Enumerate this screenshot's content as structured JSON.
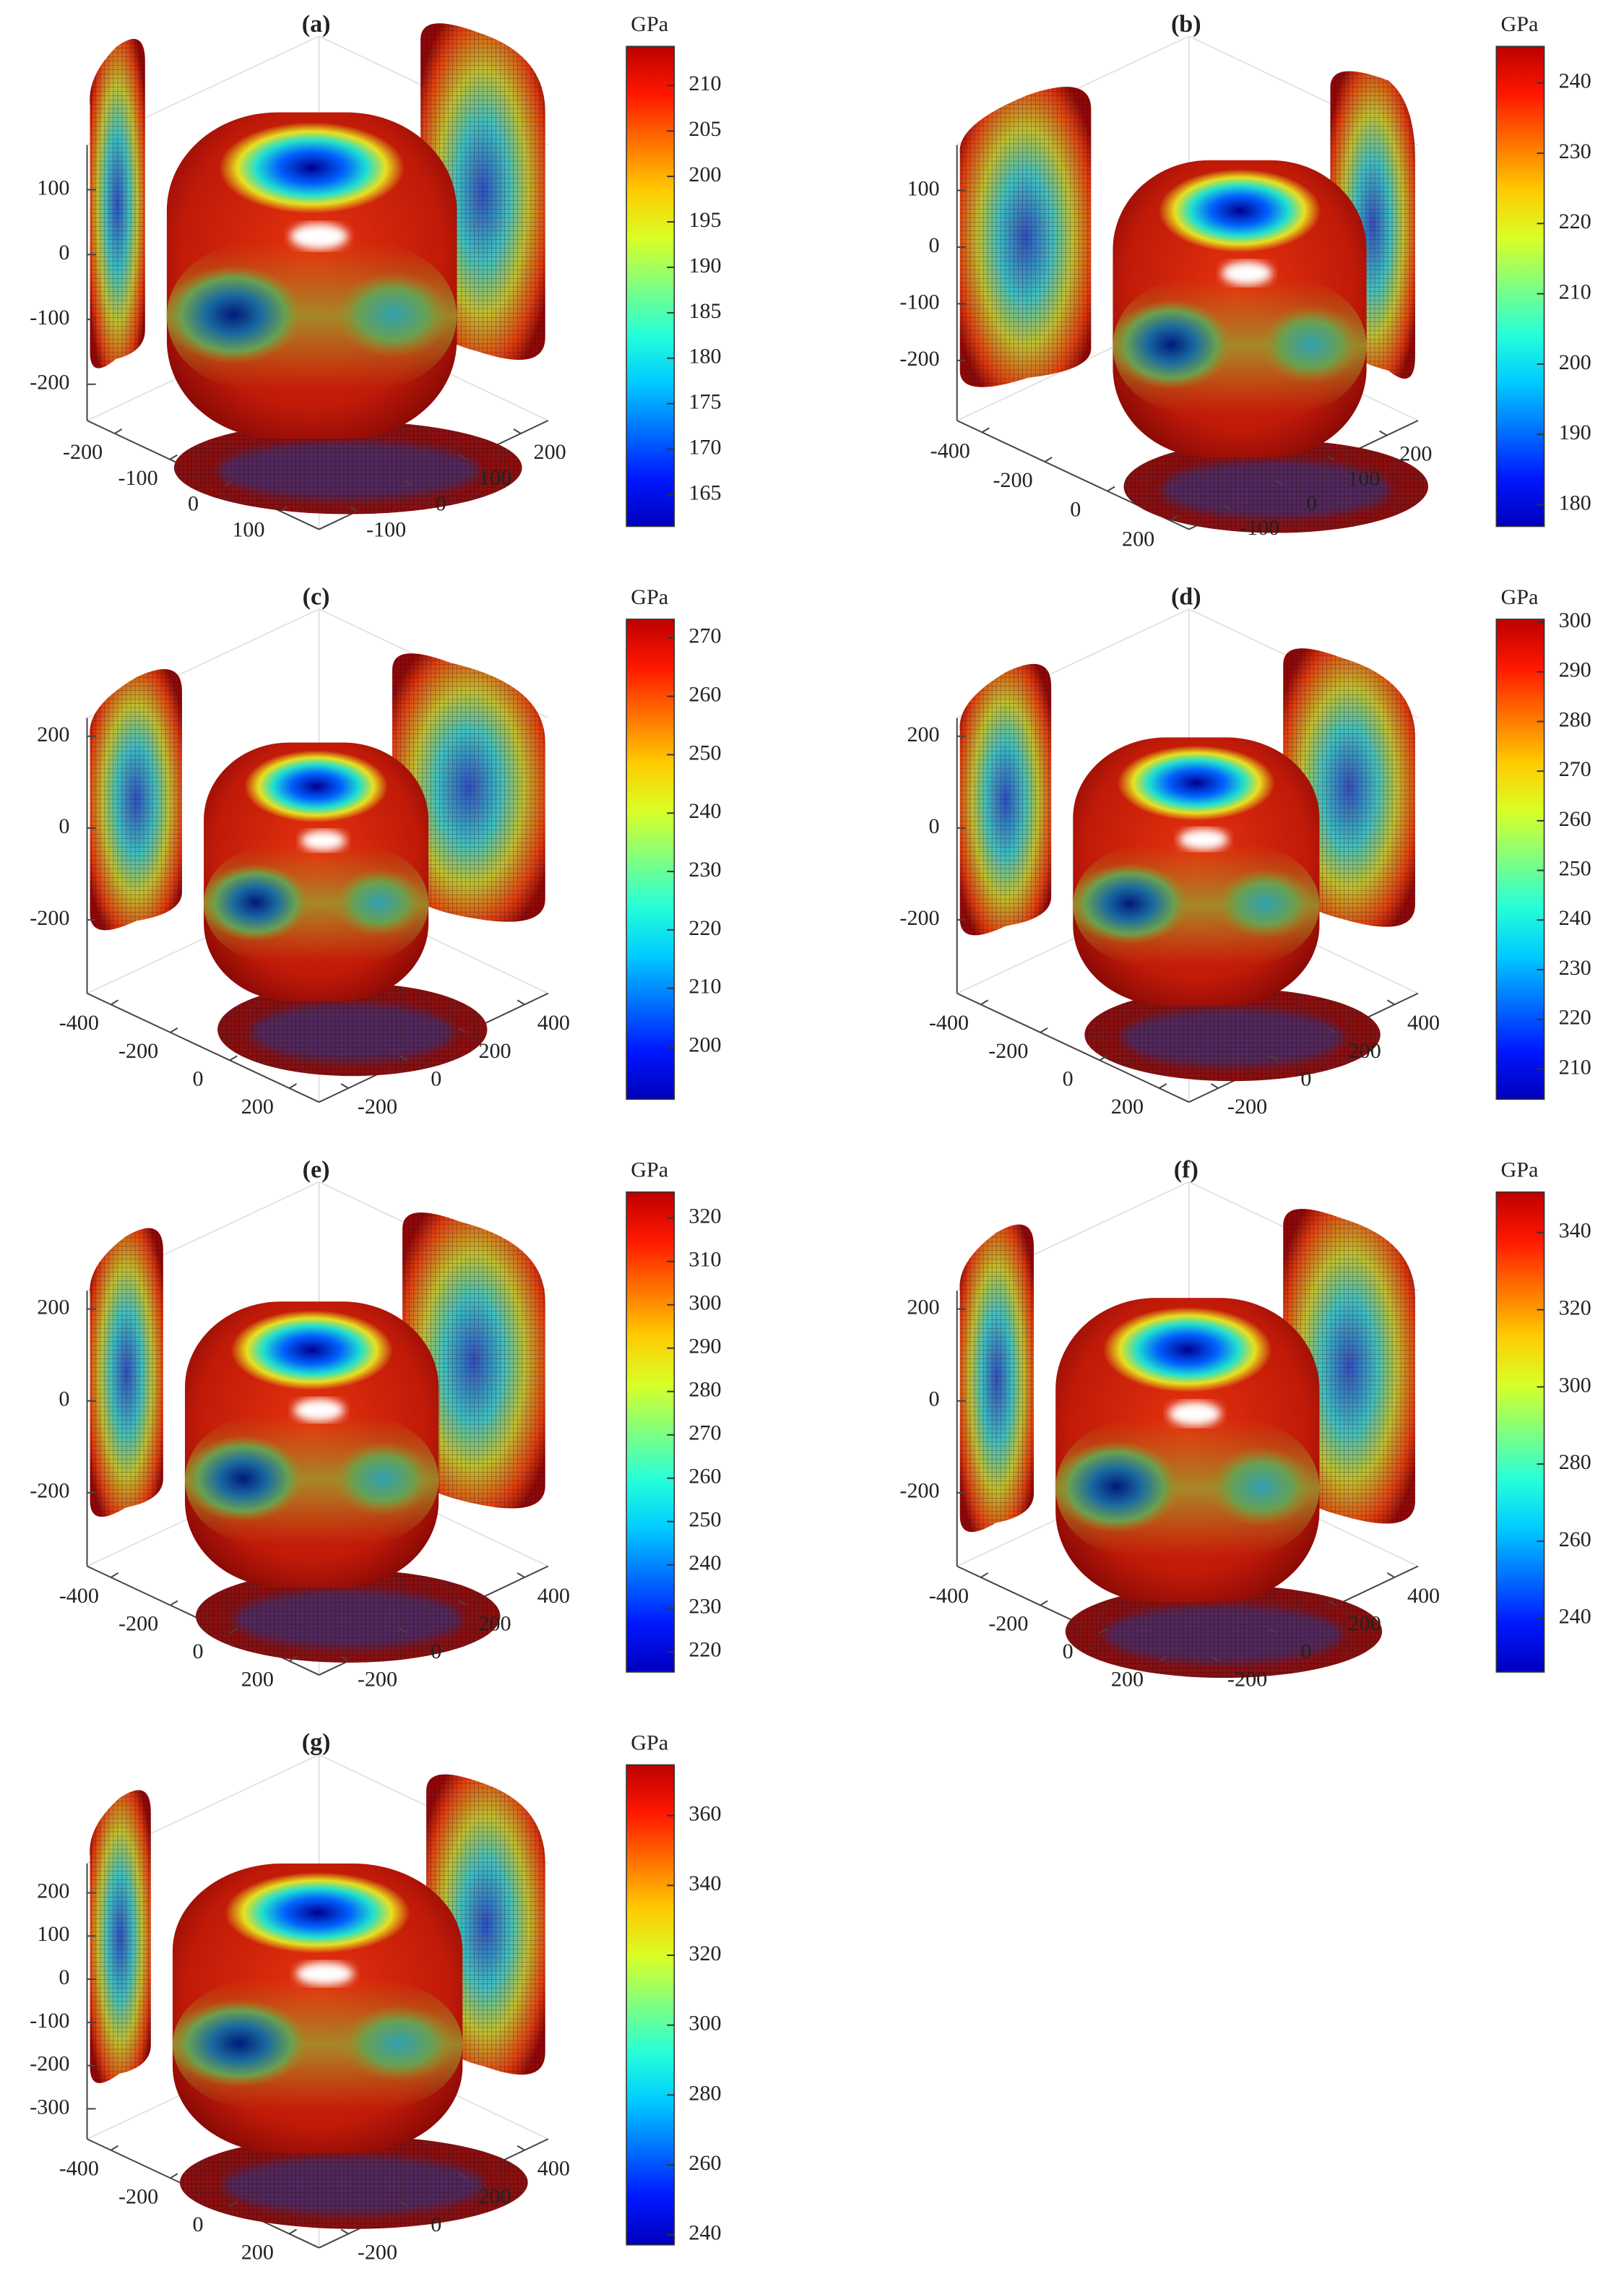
{
  "chart_data": [
    {
      "type": "surface3d",
      "title": "(a)",
      "colorbar_label": "GPa",
      "clim": [
        161.5,
        214.3
      ],
      "cticks": [
        165,
        170,
        175,
        180,
        185,
        190,
        195,
        200,
        205,
        210
      ],
      "zlim": [
        -256,
        169
      ],
      "zticks": [
        -200,
        -100,
        0,
        100
      ],
      "xlim": [
        -250,
        170
      ],
      "xticks": [
        -200,
        -100,
        0,
        100
      ],
      "ylim": [
        -170,
        250
      ],
      "yticks": [
        -100,
        0,
        100,
        200
      ]
    },
    {
      "type": "surface3d",
      "title": "(b)",
      "colorbar_label": "GPa",
      "clim": [
        176.9,
        245.2
      ],
      "cticks": [
        180,
        190,
        200,
        210,
        220,
        230,
        240
      ],
      "zlim": [
        -306,
        180
      ],
      "zticks": [
        -200,
        -100,
        0,
        100
      ],
      "xlim": [
        -480,
        260
      ],
      "xticks": [
        -400,
        -200,
        0,
        200
      ],
      "ylim": [
        -180,
        260
      ],
      "yticks": [
        -100,
        0,
        100,
        200
      ]
    },
    {
      "type": "surface3d",
      "title": "(c)",
      "colorbar_label": "GPa",
      "clim": [
        191,
        273.2
      ],
      "cticks": [
        200,
        210,
        220,
        230,
        240,
        250,
        260,
        270
      ],
      "zlim": [
        -360,
        240
      ],
      "zticks": [
        -200,
        0,
        200
      ],
      "xlim": [
        -480,
        300
      ],
      "xticks": [
        -400,
        -200,
        0,
        200
      ],
      "ylim": [
        -300,
        480
      ],
      "yticks": [
        -200,
        0,
        200,
        400
      ]
    },
    {
      "type": "surface3d",
      "title": "(d)",
      "colorbar_label": "GPa",
      "clim": [
        203.9,
        300.6
      ],
      "cticks": [
        210,
        220,
        230,
        240,
        250,
        260,
        270,
        280,
        290,
        300
      ],
      "zlim": [
        -360,
        240
      ],
      "zticks": [
        -200,
        0,
        200
      ],
      "xlim": [
        -480,
        300
      ],
      "xticks": [
        -400,
        -200,
        0,
        200
      ],
      "ylim": [
        -300,
        480
      ],
      "yticks": [
        -200,
        0,
        200,
        400
      ]
    },
    {
      "type": "surface3d",
      "title": "(e)",
      "colorbar_label": "GPa",
      "clim": [
        215.3,
        326
      ],
      "cticks": [
        220,
        230,
        240,
        250,
        260,
        270,
        280,
        290,
        300,
        310,
        320
      ],
      "zlim": [
        -360,
        240
      ],
      "zticks": [
        -200,
        0,
        200
      ],
      "xlim": [
        -480,
        300
      ],
      "xticks": [
        -400,
        -200,
        0,
        200
      ],
      "ylim": [
        -300,
        480
      ],
      "yticks": [
        -200,
        0,
        200,
        400
      ]
    },
    {
      "type": "surface3d",
      "title": "(f)",
      "colorbar_label": "GPa",
      "clim": [
        226.1,
        350.5
      ],
      "cticks": [
        240,
        260,
        280,
        300,
        320,
        340
      ],
      "zlim": [
        -360,
        240
      ],
      "zticks": [
        -200,
        0,
        200
      ],
      "xlim": [
        -480,
        300
      ],
      "xticks": [
        -400,
        -200,
        0,
        200
      ],
      "ylim": [
        -300,
        480
      ],
      "yticks": [
        -200,
        0,
        200,
        400
      ]
    },
    {
      "type": "surface3d",
      "title": "(g)",
      "colorbar_label": "GPa",
      "clim": [
        237.1,
        374.5
      ],
      "cticks": [
        240,
        260,
        280,
        300,
        320,
        340,
        360
      ],
      "zlim": [
        -370,
        268
      ],
      "zticks": [
        -300,
        -200,
        -100,
        0,
        100,
        200
      ],
      "xlim": [
        -480,
        300
      ],
      "xticks": [
        -400,
        -200,
        0,
        200
      ],
      "ylim": [
        -300,
        480
      ],
      "yticks": [
        -200,
        0,
        200,
        400
      ]
    }
  ]
}
